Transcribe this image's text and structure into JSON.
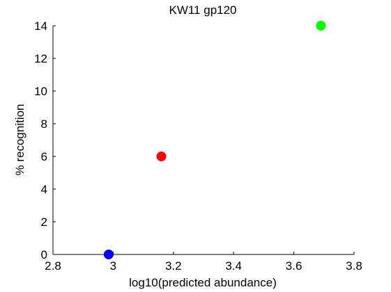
{
  "chart_data": {
    "type": "scatter",
    "title": "KW11 gp120",
    "xlabel": "log10(predicted abundance)",
    "ylabel": "% recognition",
    "xlim": [
      2.8,
      3.8
    ],
    "ylim": [
      0,
      14
    ],
    "xticks": [
      2.8,
      3.0,
      3.2,
      3.4,
      3.6,
      3.8
    ],
    "xtick_labels": [
      "2.8",
      "3",
      "3.2",
      "3.4",
      "3.6",
      "3.8"
    ],
    "yticks": [
      0,
      2,
      4,
      6,
      8,
      10,
      12,
      14
    ],
    "ytick_labels": [
      "0",
      "2",
      "4",
      "6",
      "8",
      "10",
      "12",
      "14"
    ],
    "grid": false,
    "points": [
      {
        "x": 2.985,
        "y": 0,
        "color": "#0000ff"
      },
      {
        "x": 3.16,
        "y": 6,
        "color": "#ff0000"
      },
      {
        "x": 3.69,
        "y": 14,
        "color": "#00ff00"
      }
    ]
  }
}
